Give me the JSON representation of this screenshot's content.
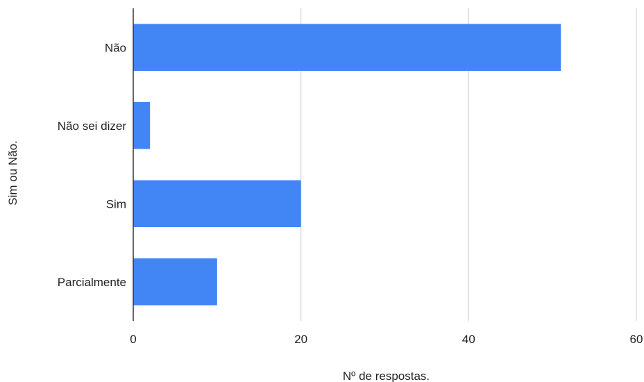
{
  "chart_data": {
    "type": "bar",
    "orientation": "horizontal",
    "categories": [
      "Não",
      "Não sei dizer",
      "Sim",
      "Parcialmente"
    ],
    "values": [
      51,
      2,
      20,
      10
    ],
    "xlabel": "Nº de respostas.",
    "ylabel": "Sim ou Não.",
    "xlim": [
      0,
      60
    ],
    "xticks": [
      "0",
      "20",
      "40",
      "60"
    ],
    "grid": "vertical",
    "legend": "none",
    "bar_color": "#4285F4"
  }
}
